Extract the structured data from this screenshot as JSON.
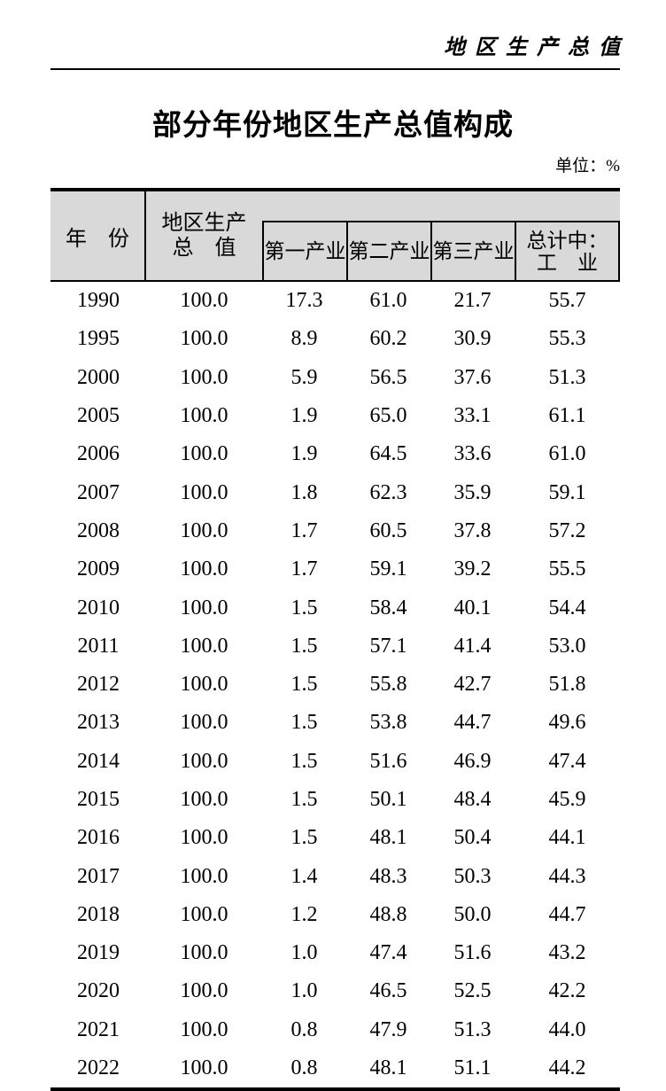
{
  "page": {
    "running_title": "地区生产总值",
    "title": "部分年份地区生产总值构成",
    "unit_note": "单位：%"
  },
  "table": {
    "header": {
      "year": "年　份",
      "total_line1": "地区生产",
      "total_line2": "总　值",
      "primary": "第一产业",
      "secondary": "第二产业",
      "tertiary": "第三产业",
      "industry_line1": "总计中：",
      "industry_line2": "工　业"
    },
    "columns": [
      "年份",
      "地区生产总值",
      "第一产业",
      "第二产业",
      "第三产业",
      "总计中：工业"
    ],
    "rows": [
      [
        "1990",
        "100.0",
        "17.3",
        "61.0",
        "21.7",
        "55.7"
      ],
      [
        "1995",
        "100.0",
        "8.9",
        "60.2",
        "30.9",
        "55.3"
      ],
      [
        "2000",
        "100.0",
        "5.9",
        "56.5",
        "37.6",
        "51.3"
      ],
      [
        "2005",
        "100.0",
        "1.9",
        "65.0",
        "33.1",
        "61.1"
      ],
      [
        "2006",
        "100.0",
        "1.9",
        "64.5",
        "33.6",
        "61.0"
      ],
      [
        "2007",
        "100.0",
        "1.8",
        "62.3",
        "35.9",
        "59.1"
      ],
      [
        "2008",
        "100.0",
        "1.7",
        "60.5",
        "37.8",
        "57.2"
      ],
      [
        "2009",
        "100.0",
        "1.7",
        "59.1",
        "39.2",
        "55.5"
      ],
      [
        "2010",
        "100.0",
        "1.5",
        "58.4",
        "40.1",
        "54.4"
      ],
      [
        "2011",
        "100.0",
        "1.5",
        "57.1",
        "41.4",
        "53.0"
      ],
      [
        "2012",
        "100.0",
        "1.5",
        "55.8",
        "42.7",
        "51.8"
      ],
      [
        "2013",
        "100.0",
        "1.5",
        "53.8",
        "44.7",
        "49.6"
      ],
      [
        "2014",
        "100.0",
        "1.5",
        "51.6",
        "46.9",
        "47.4"
      ],
      [
        "2015",
        "100.0",
        "1.5",
        "50.1",
        "48.4",
        "45.9"
      ],
      [
        "2016",
        "100.0",
        "1.5",
        "48.1",
        "50.4",
        "44.1"
      ],
      [
        "2017",
        "100.0",
        "1.4",
        "48.3",
        "50.3",
        "44.3"
      ],
      [
        "2018",
        "100.0",
        "1.2",
        "48.8",
        "50.0",
        "44.7"
      ],
      [
        "2019",
        "100.0",
        "1.0",
        "47.4",
        "51.6",
        "43.2"
      ],
      [
        "2020",
        "100.0",
        "1.0",
        "46.5",
        "52.5",
        "42.2"
      ],
      [
        "2021",
        "100.0",
        "0.8",
        "47.9",
        "51.3",
        "44.0"
      ],
      [
        "2022",
        "100.0",
        "0.8",
        "48.1",
        "51.1",
        "44.2"
      ]
    ]
  }
}
